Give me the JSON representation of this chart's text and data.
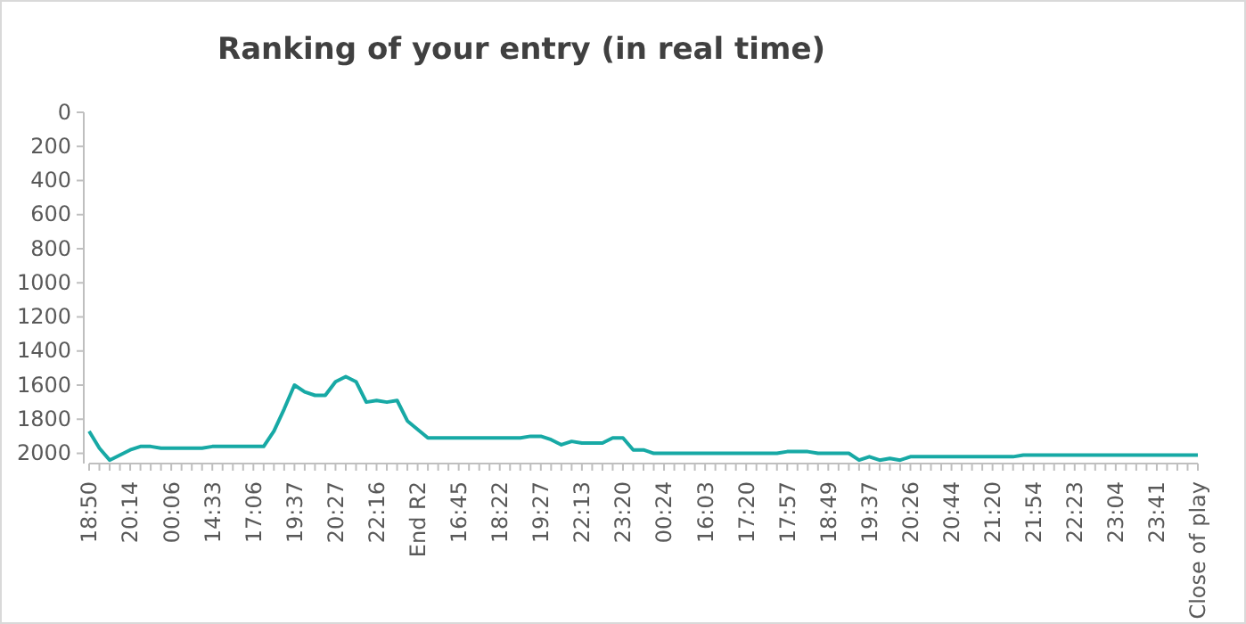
{
  "chart_data": {
    "type": "line",
    "title": "Ranking of your entry (in real time)",
    "categories": [
      "18:50",
      null,
      null,
      null,
      "20:14",
      null,
      null,
      null,
      "00:06",
      null,
      null,
      null,
      "14:33",
      null,
      null,
      null,
      "17:06",
      null,
      null,
      null,
      "19:37",
      null,
      null,
      null,
      "20:27",
      null,
      null,
      null,
      "22:16",
      null,
      null,
      null,
      "End R2",
      null,
      null,
      null,
      "16:45",
      null,
      null,
      null,
      "18:22",
      null,
      null,
      null,
      "19:27",
      null,
      null,
      null,
      "22:13",
      null,
      null,
      null,
      "23:20",
      null,
      null,
      null,
      "00:24",
      null,
      null,
      null,
      "16:03",
      null,
      null,
      null,
      "17:20",
      null,
      null,
      null,
      "17:57",
      null,
      null,
      null,
      "18:49",
      null,
      null,
      null,
      "19:37",
      null,
      null,
      null,
      "20:26",
      null,
      null,
      null,
      "20:44",
      null,
      null,
      null,
      "21:20",
      null,
      null,
      null,
      "21:54",
      null,
      null,
      null,
      "22:23",
      null,
      null,
      null,
      "23:04",
      null,
      null,
      null,
      "23:41",
      null,
      null,
      null,
      "Close of play"
    ],
    "series": [
      {
        "color": "#17a9a5",
        "values": [
          1870,
          1970,
          2040,
          2010,
          1980,
          1960,
          1960,
          1970,
          1970,
          1970,
          1970,
          1970,
          1960,
          1960,
          1960,
          1960,
          1960,
          1960,
          1870,
          1740,
          1600,
          1640,
          1660,
          1660,
          1580,
          1550,
          1580,
          1700,
          1690,
          1700,
          1690,
          1810,
          1860,
          1910,
          1910,
          1910,
          1910,
          1910,
          1910,
          1910,
          1910,
          1910,
          1910,
          1900,
          1900,
          1920,
          1950,
          1930,
          1940,
          1940,
          1940,
          1910,
          1910,
          1980,
          1980,
          2000,
          2000,
          2000,
          2000,
          2000,
          2000,
          2000,
          2000,
          2000,
          2000,
          2000,
          2000,
          2000,
          1990,
          1990,
          1990,
          2000,
          2000,
          2000,
          2000,
          2040,
          2020,
          2040,
          2030,
          2040,
          2020,
          2020,
          2020,
          2020,
          2020,
          2020,
          2020,
          2020,
          2020,
          2020,
          2020,
          2010,
          2010,
          2010,
          2010,
          2010,
          2010,
          2010,
          2010,
          2010,
          2010,
          2010,
          2010,
          2010,
          2010,
          2010,
          2010,
          2010,
          2010
        ]
      }
    ],
    "ylim": [
      2060,
      0
    ],
    "yticks": [
      0,
      200,
      400,
      600,
      800,
      1000,
      1200,
      1400,
      1600,
      1800,
      2000
    ],
    "grid": false,
    "marker": "none",
    "line_style": "solid"
  }
}
